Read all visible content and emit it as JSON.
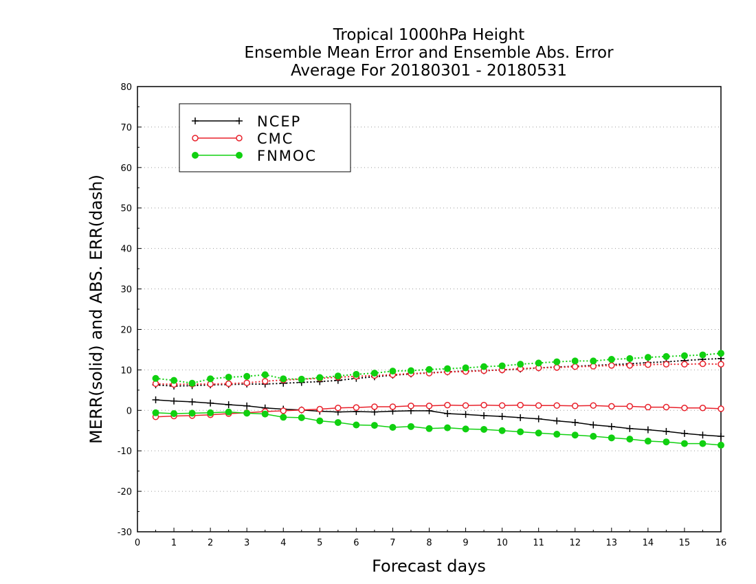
{
  "chart_data": {
    "type": "line",
    "title_lines": [
      "Tropical 1000hPa Height",
      "Ensemble Mean Error and Ensemble Abs. Error",
      "Average For 20180301 - 20180531"
    ],
    "xlabel": "Forecast days",
    "ylabel": "MERR(solid) and ABS. ERR(dash)",
    "xlim": [
      0,
      16
    ],
    "ylim": [
      -30,
      80
    ],
    "x_ticks": [
      "0",
      "1",
      "2",
      "3",
      "4",
      "5",
      "6",
      "7",
      "8",
      "9",
      "10",
      "11",
      "12",
      "13",
      "14",
      "15",
      "16"
    ],
    "y_ticks": [
      "-30",
      "-20",
      "-10",
      "0",
      "10",
      "20",
      "30",
      "40",
      "50",
      "60",
      "70",
      "80"
    ],
    "grid": true,
    "legend_position": "top-left",
    "x": [
      0.5,
      1,
      1.5,
      2,
      2.5,
      3,
      3.5,
      4,
      4.5,
      5,
      5.5,
      6,
      6.5,
      7,
      7.5,
      8,
      8.5,
      9,
      9.5,
      10,
      10.5,
      11,
      11.5,
      12,
      12.5,
      13,
      13.5,
      14,
      14.5,
      15,
      15.5,
      16
    ],
    "series": [
      {
        "name": "NCEP",
        "color": "#000000",
        "marker": "plus",
        "style": "solid",
        "values": [
          2.6,
          2.3,
          2.1,
          1.8,
          1.4,
          1.1,
          0.6,
          0.3,
          0.1,
          -0.2,
          -0.4,
          -0.3,
          -0.4,
          -0.2,
          -0.1,
          -0.1,
          -0.8,
          -1.0,
          -1.3,
          -1.5,
          -1.8,
          -2.1,
          -2.6,
          -3.0,
          -3.6,
          -4.0,
          -4.5,
          -4.8,
          -5.2,
          -5.7,
          -6.1,
          -6.4
        ]
      },
      {
        "name": "CMC",
        "color": "#e8202a",
        "marker": "open-circle",
        "style": "solid",
        "values": [
          -1.6,
          -1.4,
          -1.3,
          -1.1,
          -0.8,
          -0.6,
          -0.3,
          -0.1,
          0.1,
          0.3,
          0.6,
          0.7,
          0.9,
          0.9,
          1.1,
          1.1,
          1.3,
          1.2,
          1.3,
          1.2,
          1.3,
          1.2,
          1.2,
          1.1,
          1.2,
          1.0,
          1.0,
          0.8,
          0.8,
          0.6,
          0.6,
          0.4
        ]
      },
      {
        "name": "FNMOC",
        "color": "#10d010",
        "marker": "filled-circle",
        "style": "solid",
        "values": [
          -0.6,
          -0.8,
          -0.7,
          -0.6,
          -0.4,
          -0.7,
          -0.9,
          -1.7,
          -1.8,
          -2.6,
          -3.0,
          -3.6,
          -3.7,
          -4.2,
          -4.0,
          -4.5,
          -4.3,
          -4.6,
          -4.7,
          -5.0,
          -5.3,
          -5.6,
          -5.9,
          -6.1,
          -6.4,
          -6.8,
          -7.1,
          -7.6,
          -7.8,
          -8.2,
          -8.2,
          -8.6
        ]
      },
      {
        "name": "",
        "color": "#000000",
        "marker": "plus",
        "style": "dotted",
        "values": [
          6.3,
          6.0,
          6.1,
          6.3,
          6.4,
          6.5,
          6.5,
          6.7,
          6.9,
          7.1,
          7.4,
          7.9,
          8.3,
          8.7,
          9.0,
          9.3,
          9.5,
          9.7,
          9.8,
          10.0,
          10.2,
          10.5,
          10.7,
          10.9,
          11.1,
          11.3,
          11.5,
          11.8,
          12.0,
          12.3,
          12.6,
          12.8
        ]
      },
      {
        "name": "",
        "color": "#e8202a",
        "marker": "open-circle",
        "style": "dotted",
        "values": [
          6.6,
          6.4,
          6.5,
          6.5,
          6.6,
          6.8,
          7.2,
          7.5,
          7.7,
          7.9,
          8.2,
          8.4,
          8.6,
          8.8,
          9.1,
          9.2,
          9.5,
          9.6,
          9.8,
          10.0,
          10.3,
          10.5,
          10.6,
          10.8,
          10.9,
          11.1,
          11.1,
          11.3,
          11.4,
          11.4,
          11.5,
          11.4
        ]
      },
      {
        "name": "",
        "color": "#10d010",
        "marker": "filled-circle",
        "style": "dotted",
        "values": [
          7.9,
          7.4,
          6.7,
          7.8,
          8.2,
          8.4,
          8.8,
          7.8,
          7.7,
          8.1,
          8.5,
          8.9,
          9.2,
          9.7,
          9.8,
          10.1,
          10.3,
          10.5,
          10.8,
          11.0,
          11.4,
          11.7,
          12.0,
          12.2,
          12.2,
          12.6,
          12.8,
          13.1,
          13.3,
          13.5,
          13.7,
          14.1
        ]
      }
    ]
  }
}
